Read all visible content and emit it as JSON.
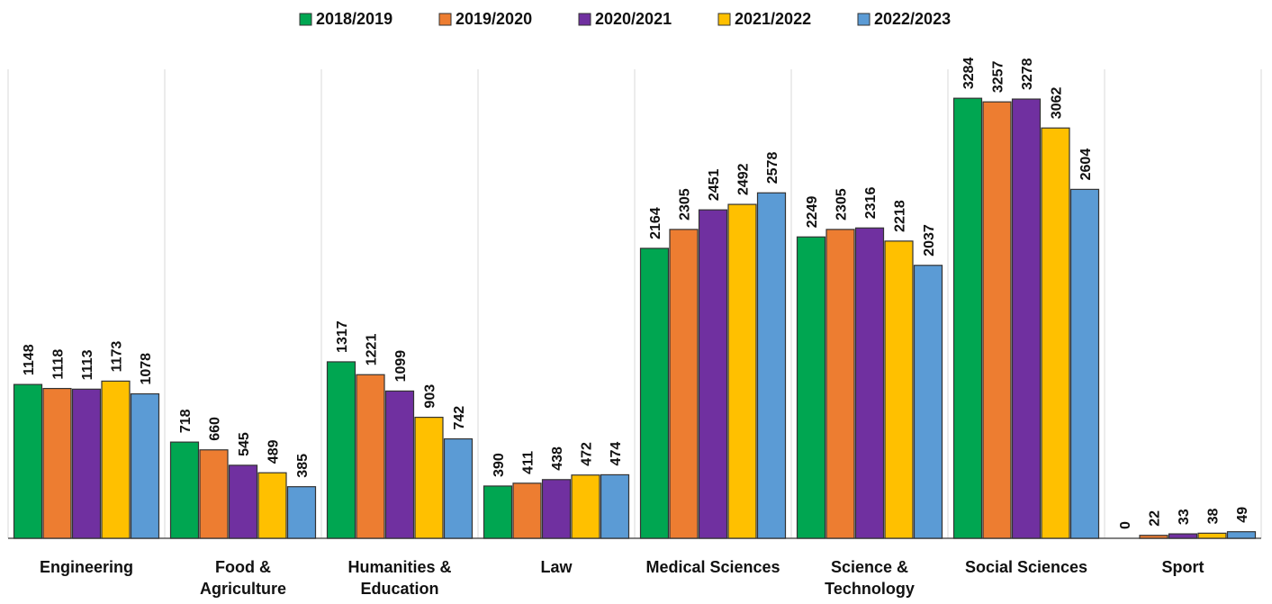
{
  "chart_data": {
    "type": "bar",
    "categories": [
      "Engineering",
      "Food &\nAgriculture",
      "Humanities &\nEducation",
      "Law",
      "Medical Sciences",
      "Science &\nTechnology",
      "Social Sciences",
      "Sport"
    ],
    "series": [
      {
        "name": "2018/2019",
        "color": "#00a651",
        "values": [
          1148,
          718,
          1317,
          390,
          2164,
          2249,
          3284,
          0
        ]
      },
      {
        "name": "2019/2020",
        "color": "#ed7d31",
        "values": [
          1118,
          660,
          1221,
          411,
          2305,
          2305,
          3257,
          22
        ]
      },
      {
        "name": "2020/2021",
        "color": "#7030a0",
        "values": [
          1113,
          545,
          1099,
          438,
          2451,
          2316,
          3278,
          33
        ]
      },
      {
        "name": "2021/2022",
        "color": "#ffc000",
        "values": [
          1173,
          489,
          903,
          472,
          2492,
          2218,
          3062,
          38
        ]
      },
      {
        "name": "2022/2023",
        "color": "#5b9bd5",
        "values": [
          1078,
          385,
          742,
          474,
          2578,
          2037,
          2604,
          49
        ]
      }
    ],
    "ylim": [
      0,
      3500
    ],
    "legend": "top"
  }
}
